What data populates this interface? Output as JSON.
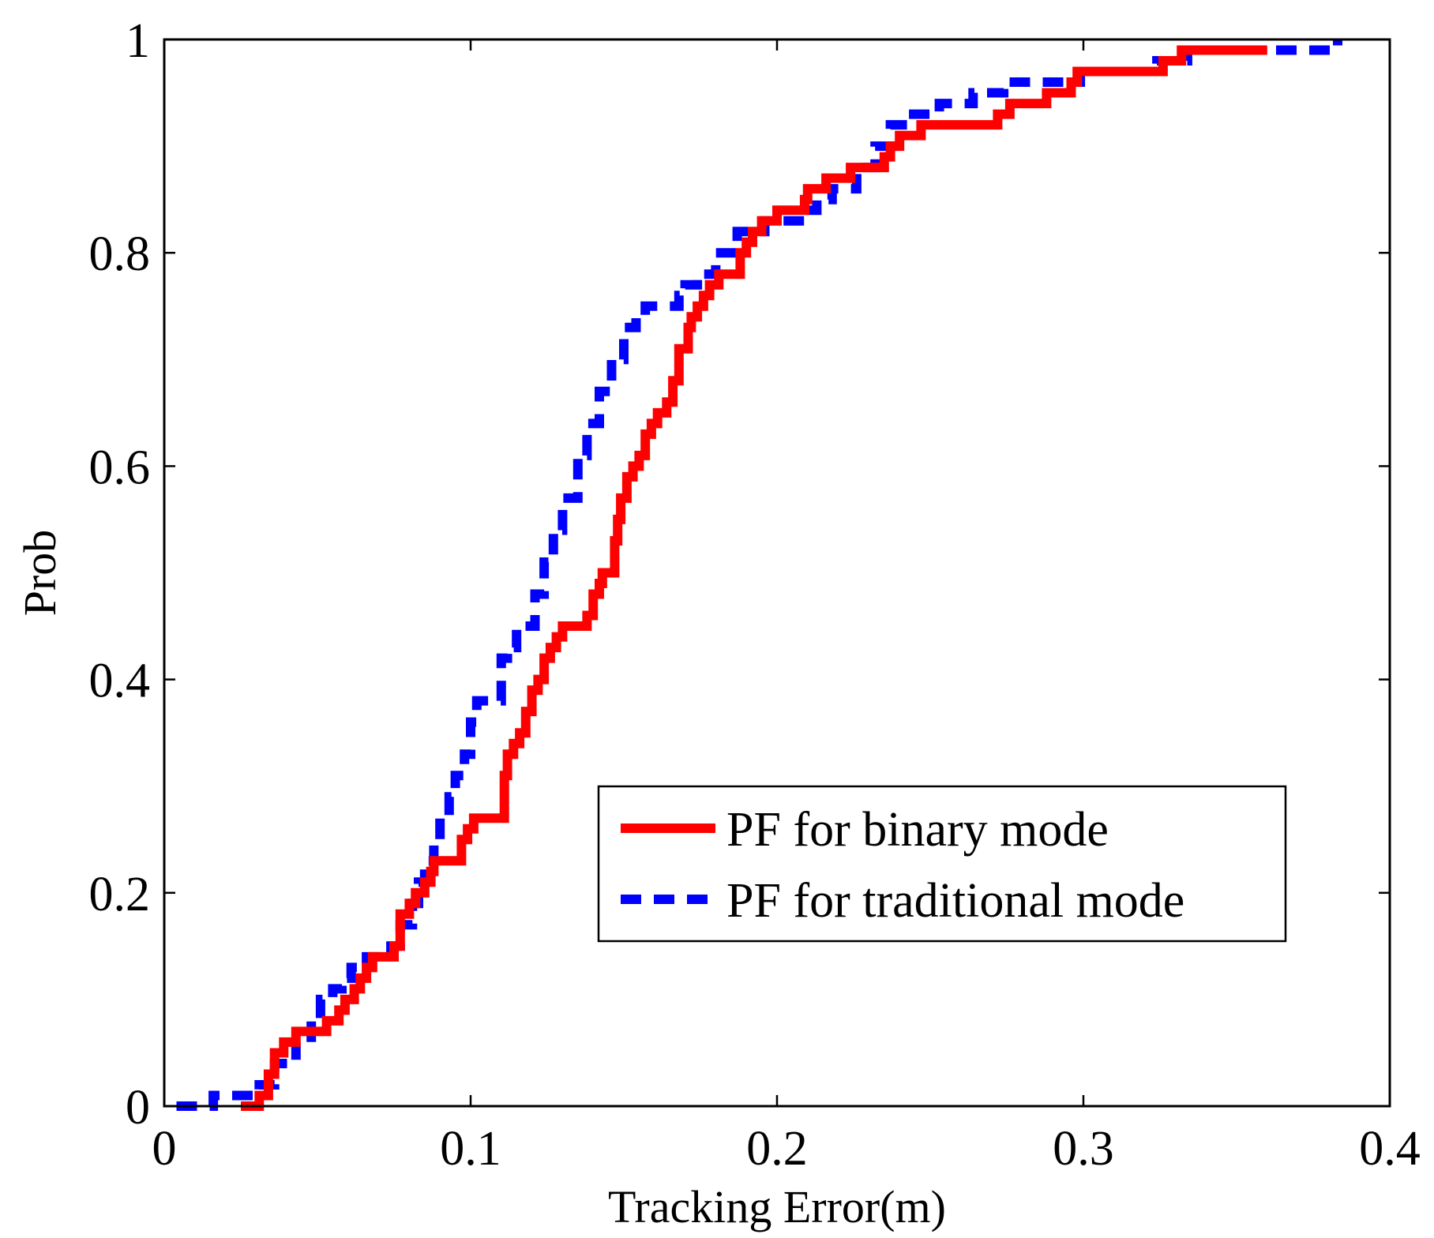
{
  "chart_data": {
    "type": "line",
    "title": "",
    "xlabel": "Tracking Error(m)",
    "ylabel": "Prob",
    "xlim": [
      0,
      0.4
    ],
    "ylim": [
      0,
      1
    ],
    "xticks": [
      0,
      0.1,
      0.2,
      0.3,
      0.4
    ],
    "yticks": [
      0,
      0.2,
      0.4,
      0.6,
      0.8,
      1
    ],
    "xtick_labels": [
      "0",
      "0.1",
      "0.2",
      "0.3",
      "0.4"
    ],
    "ytick_labels": [
      "0",
      "0.2",
      "0.4",
      "0.6",
      "0.8",
      "1"
    ],
    "grid": false,
    "legend_position": "lower-right",
    "series": [
      {
        "name": "PF for binary mode",
        "color": "#ff0000",
        "style": "solid",
        "step": true,
        "x": [
          0.025,
          0.031,
          0.034,
          0.036,
          0.039,
          0.043,
          0.053,
          0.057,
          0.059,
          0.062,
          0.064,
          0.066,
          0.068,
          0.075,
          0.077,
          0.08,
          0.082,
          0.085,
          0.087,
          0.088,
          0.09,
          0.097,
          0.099,
          0.101,
          0.103,
          0.111,
          0.112,
          0.114,
          0.116,
          0.118,
          0.12,
          0.122,
          0.124,
          0.126,
          0.128,
          0.13,
          0.131,
          0.138,
          0.14,
          0.142,
          0.143,
          0.147,
          0.148,
          0.149,
          0.151,
          0.153,
          0.155,
          0.157,
          0.159,
          0.161,
          0.164,
          0.166,
          0.168,
          0.171,
          0.172,
          0.174,
          0.176,
          0.178,
          0.181,
          0.183,
          0.188,
          0.19,
          0.192,
          0.195,
          0.2,
          0.202,
          0.209,
          0.21,
          0.216,
          0.224,
          0.235,
          0.237,
          0.24,
          0.247,
          0.258,
          0.272,
          0.276,
          0.288,
          0.296,
          0.298,
          0.326,
          0.332,
          0.36
        ],
        "y": [
          0.0,
          0.01,
          0.03,
          0.05,
          0.06,
          0.07,
          0.08,
          0.09,
          0.1,
          0.11,
          0.12,
          0.13,
          0.14,
          0.15,
          0.18,
          0.19,
          0.2,
          0.21,
          0.22,
          0.23,
          0.23,
          0.25,
          0.26,
          0.27,
          0.27,
          0.31,
          0.33,
          0.34,
          0.35,
          0.37,
          0.39,
          0.4,
          0.42,
          0.43,
          0.44,
          0.45,
          0.45,
          0.46,
          0.48,
          0.49,
          0.5,
          0.53,
          0.55,
          0.57,
          0.59,
          0.6,
          0.61,
          0.63,
          0.64,
          0.65,
          0.66,
          0.68,
          0.71,
          0.73,
          0.74,
          0.75,
          0.76,
          0.77,
          0.78,
          0.78,
          0.8,
          0.81,
          0.82,
          0.83,
          0.84,
          0.84,
          0.85,
          0.86,
          0.87,
          0.88,
          0.89,
          0.9,
          0.91,
          0.92,
          0.92,
          0.93,
          0.94,
          0.95,
          0.96,
          0.97,
          0.98,
          0.99,
          0.99
        ]
      },
      {
        "name": "PF for traditional mode",
        "color": "#0000ff",
        "style": "dashed",
        "step": true,
        "x": [
          0.004,
          0.016,
          0.031,
          0.036,
          0.043,
          0.048,
          0.051,
          0.055,
          0.058,
          0.061,
          0.066,
          0.074,
          0.077,
          0.081,
          0.083,
          0.085,
          0.088,
          0.09,
          0.093,
          0.095,
          0.098,
          0.1,
          0.102,
          0.11,
          0.112,
          0.115,
          0.121,
          0.124,
          0.127,
          0.13,
          0.135,
          0.138,
          0.142,
          0.146,
          0.15,
          0.154,
          0.157,
          0.168,
          0.17,
          0.174,
          0.18,
          0.187,
          0.196,
          0.209,
          0.213,
          0.218,
          0.226,
          0.232,
          0.237,
          0.243,
          0.253,
          0.264,
          0.274,
          0.283,
          0.299,
          0.315,
          0.324,
          0.334,
          0.348,
          0.363,
          0.383
        ],
        "y": [
          0.0,
          0.01,
          0.02,
          0.04,
          0.06,
          0.08,
          0.1,
          0.11,
          0.12,
          0.13,
          0.14,
          0.15,
          0.17,
          0.19,
          0.21,
          0.23,
          0.25,
          0.27,
          0.29,
          0.31,
          0.33,
          0.36,
          0.38,
          0.42,
          0.43,
          0.45,
          0.48,
          0.51,
          0.54,
          0.57,
          0.61,
          0.64,
          0.67,
          0.7,
          0.73,
          0.74,
          0.75,
          0.76,
          0.77,
          0.78,
          0.8,
          0.82,
          0.83,
          0.84,
          0.85,
          0.86,
          0.88,
          0.9,
          0.92,
          0.93,
          0.94,
          0.95,
          0.96,
          0.96,
          0.97,
          0.97,
          0.98,
          0.99,
          0.99,
          0.99,
          1.0
        ]
      }
    ]
  }
}
